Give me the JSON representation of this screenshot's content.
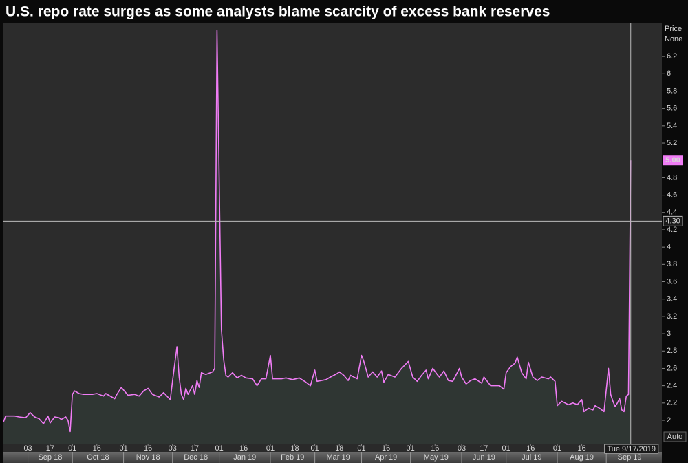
{
  "chart_data": {
    "type": "line",
    "title": "U.S. repo rate surges as some analysts blame scarcity of excess bank reserves",
    "axis_header": [
      "Price",
      "None"
    ],
    "axis_footer": "Auto",
    "color": "#f07cf5",
    "xlim": [
      "2018-08-17",
      "2019-10-07"
    ],
    "ylim": [
      1.73,
      6.59
    ],
    "yticks": [
      2,
      2.2,
      2.4,
      2.6,
      2.8,
      3,
      3.2,
      3.4,
      3.6,
      3.8,
      4,
      4.2,
      4.4,
      4.6,
      4.8,
      5.2,
      5.4,
      5.6,
      5.8,
      6,
      6.2
    ],
    "xticks": [
      {
        "value": "2018-09-03",
        "label": "03"
      },
      {
        "value": "2018-09-17",
        "label": "17"
      },
      {
        "value": "2018-10-01",
        "label": "01"
      },
      {
        "value": "2018-10-16",
        "label": "16"
      },
      {
        "value": "2018-11-01",
        "label": "01"
      },
      {
        "value": "2018-11-16",
        "label": "16"
      },
      {
        "value": "2018-12-03",
        "label": "03"
      },
      {
        "value": "2018-12-17",
        "label": "17"
      },
      {
        "value": "2019-01-01",
        "label": "01"
      },
      {
        "value": "2019-01-16",
        "label": "16"
      },
      {
        "value": "2019-02-01",
        "label": "01"
      },
      {
        "value": "2019-02-18",
        "label": "18"
      },
      {
        "value": "2019-03-01",
        "label": "01"
      },
      {
        "value": "2019-03-18",
        "label": "18"
      },
      {
        "value": "2019-04-01",
        "label": "01"
      },
      {
        "value": "2019-04-16",
        "label": "16"
      },
      {
        "value": "2019-05-01",
        "label": "01"
      },
      {
        "value": "2019-05-16",
        "label": "16"
      },
      {
        "value": "2019-06-03",
        "label": "03"
      },
      {
        "value": "2019-06-17",
        "label": "17"
      },
      {
        "value": "2019-07-01",
        "label": "01"
      },
      {
        "value": "2019-07-16",
        "label": "16"
      },
      {
        "value": "2019-08-01",
        "label": "01"
      },
      {
        "value": "2019-08-16",
        "label": "16"
      }
    ],
    "months": [
      {
        "value": "2018-09-01",
        "label": "Sep 18"
      },
      {
        "value": "2018-10-01",
        "label": "Oct 18"
      },
      {
        "value": "2018-11-01",
        "label": "Nov 18"
      },
      {
        "value": "2018-12-01",
        "label": "Dec 18"
      },
      {
        "value": "2019-01-01",
        "label": "Jan 19"
      },
      {
        "value": "2019-02-01",
        "label": "Feb 19"
      },
      {
        "value": "2019-03-01",
        "label": "Mar 19"
      },
      {
        "value": "2019-04-01",
        "label": "Apr 19"
      },
      {
        "value": "2019-05-01",
        "label": "May 19"
      },
      {
        "value": "2019-06-01",
        "label": "Jun 19"
      },
      {
        "value": "2019-07-01",
        "label": "Jul 19"
      },
      {
        "value": "2019-08-01",
        "label": "Aug 19"
      },
      {
        "value": "2019-09-01",
        "label": "Sep 19"
      }
    ],
    "last_price": {
      "value": 5.0,
      "label": "5.00"
    },
    "crosshair": {
      "x": {
        "value": "2019-09-17",
        "label": "Tue 9/17/2019"
      },
      "y": {
        "value": 4.3,
        "label": "4.30"
      }
    },
    "x": [
      "2018-08-17",
      "2018-08-20",
      "2018-08-24",
      "2018-08-28",
      "2018-08-31",
      "2018-09-04",
      "2018-09-06",
      "2018-09-10",
      "2018-09-12",
      "2018-09-14",
      "2018-09-17",
      "2018-09-19",
      "2018-09-21",
      "2018-09-24",
      "2018-09-26",
      "2018-09-27",
      "2018-09-28",
      "2018-10-01",
      "2018-10-02",
      "2018-10-04",
      "2018-10-08",
      "2018-10-12",
      "2018-10-16",
      "2018-10-19",
      "2018-10-22",
      "2018-10-26",
      "2018-10-29",
      "2018-10-31",
      "2018-11-02",
      "2018-11-05",
      "2018-11-08",
      "2018-11-12",
      "2018-11-14",
      "2018-11-16",
      "2018-11-20",
      "2018-11-23",
      "2018-11-27",
      "2018-11-30",
      "2018-12-03",
      "2018-12-05",
      "2018-12-06",
      "2018-12-07",
      "2018-12-10",
      "2018-12-11",
      "2018-12-12",
      "2018-12-14",
      "2018-12-17",
      "2018-12-18",
      "2018-12-19",
      "2018-12-20",
      "2018-12-24",
      "2018-12-27",
      "2018-12-28",
      "2018-12-31",
      "2019-01-02",
      "2019-01-03",
      "2019-01-04",
      "2019-01-07",
      "2019-01-09",
      "2019-01-11",
      "2019-01-15",
      "2019-01-17",
      "2019-01-22",
      "2019-01-24",
      "2019-01-28",
      "2019-01-30",
      "2019-02-01",
      "2019-02-04",
      "2019-02-08",
      "2019-02-12",
      "2019-02-15",
      "2019-02-20",
      "2019-02-25",
      "2019-02-27",
      "2019-03-01",
      "2019-03-04",
      "2019-03-08",
      "2019-03-12",
      "2019-03-15",
      "2019-03-18",
      "2019-03-20",
      "2019-03-22",
      "2019-03-25",
      "2019-03-28",
      "2019-04-01",
      "2019-04-02",
      "2019-04-04",
      "2019-04-08",
      "2019-04-10",
      "2019-04-12",
      "2019-04-15",
      "2019-04-17",
      "2019-04-22",
      "2019-04-25",
      "2019-04-30",
      "2019-05-02",
      "2019-05-06",
      "2019-05-08",
      "2019-05-10",
      "2019-05-13",
      "2019-05-15",
      "2019-05-17",
      "2019-05-20",
      "2019-05-22",
      "2019-05-24",
      "2019-05-28",
      "2019-05-31",
      "2019-06-03",
      "2019-06-05",
      "2019-06-07",
      "2019-06-11",
      "2019-06-14",
      "2019-06-17",
      "2019-06-20",
      "2019-06-26",
      "2019-06-28",
      "2019-07-01",
      "2019-07-03",
      "2019-07-05",
      "2019-07-08",
      "2019-07-10",
      "2019-07-12",
      "2019-07-15",
      "2019-07-17",
      "2019-07-19",
      "2019-07-23",
      "2019-07-26",
      "2019-07-29",
      "2019-07-31",
      "2019-08-01",
      "2019-08-05",
      "2019-08-08",
      "2019-08-12",
      "2019-08-14",
      "2019-08-16",
      "2019-08-19",
      "2019-08-21",
      "2019-08-23",
      "2019-08-26",
      "2019-08-28",
      "2019-08-30",
      "2019-09-03",
      "2019-09-04",
      "2019-09-05",
      "2019-09-06",
      "2019-09-09",
      "2019-09-10",
      "2019-09-11",
      "2019-09-12",
      "2019-09-13",
      "2019-09-16",
      "2019-09-17"
    ],
    "values": [
      1.98,
      2.05,
      2.05,
      2.04,
      2.03,
      2.09,
      2.04,
      2.02,
      1.96,
      2.05,
      1.97,
      2.04,
      2.03,
      2.01,
      2.04,
      2.0,
      1.87,
      2.3,
      2.34,
      2.31,
      2.3,
      2.3,
      2.31,
      2.28,
      2.31,
      2.25,
      2.3,
      2.38,
      2.32,
      2.29,
      2.3,
      2.28,
      2.34,
      2.37,
      2.3,
      2.27,
      2.32,
      2.24,
      2.45,
      2.85,
      2.5,
      2.3,
      2.24,
      2.37,
      2.3,
      2.4,
      2.3,
      2.46,
      2.38,
      2.55,
      2.53,
      2.56,
      2.6,
      6.5,
      3.05,
      2.7,
      2.52,
      2.5,
      2.55,
      2.49,
      2.52,
      2.49,
      2.48,
      2.4,
      2.48,
      2.48,
      2.75,
      2.48,
      2.48,
      2.49,
      2.47,
      2.49,
      2.44,
      2.4,
      2.58,
      2.45,
      2.47,
      2.5,
      2.54,
      2.56,
      2.52,
      2.46,
      2.52,
      2.48,
      2.75,
      2.68,
      2.5,
      2.56,
      2.5,
      2.57,
      2.44,
      2.53,
      2.5,
      2.6,
      2.68,
      2.5,
      2.45,
      2.52,
      2.58,
      2.48,
      2.6,
      2.53,
      2.5,
      2.57,
      2.46,
      2.45,
      2.6,
      2.5,
      2.42,
      2.46,
      2.48,
      2.43,
      2.5,
      2.4,
      2.4,
      2.36,
      2.55,
      2.62,
      2.66,
      2.73,
      2.55,
      2.48,
      2.67,
      2.5,
      2.46,
      2.5,
      2.48,
      2.5,
      2.45,
      2.17,
      2.22,
      2.18,
      2.2,
      2.18,
      2.24,
      2.1,
      2.14,
      2.12,
      2.17,
      2.14,
      2.1,
      2.6,
      2.3,
      2.22,
      2.16,
      2.2,
      2.25,
      2.12,
      2.1,
      2.28,
      2.3,
      5.0
    ]
  }
}
